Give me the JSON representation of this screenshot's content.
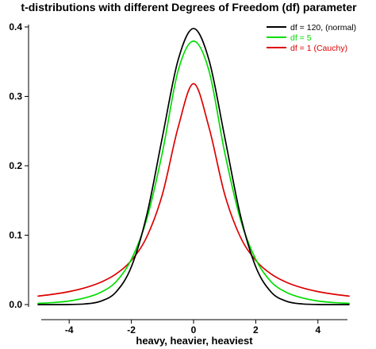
{
  "chart_data": {
    "type": "line",
    "title": "t-distributions with different Degrees of Freedom (df) parameter",
    "xlabel": "heavy, heavier, heaviest",
    "ylabel": "",
    "xlim": [
      -5,
      5
    ],
    "ylim": [
      0,
      0.4
    ],
    "x_ticks": [
      -4,
      -2,
      0,
      2,
      4
    ],
    "x_tick_labels": [
      "-4",
      "-2",
      "0",
      "2",
      "4"
    ],
    "y_ticks": [
      0.0,
      0.1,
      0.2,
      0.3,
      0.4
    ],
    "y_tick_labels": [
      "0.0",
      "0.1",
      "0.2",
      "0.3",
      "0.4"
    ],
    "grid": false,
    "legend_position": "top-right",
    "x": [
      -5,
      -4.5,
      -4,
      -3.5,
      -3,
      -2.5,
      -2,
      -1.5,
      -1,
      -0.5,
      0,
      0.5,
      1,
      1.5,
      2,
      2.5,
      3,
      3.5,
      4,
      4.5,
      5
    ],
    "series": [
      {
        "name": "df = 120, (normal)",
        "color": "#000000",
        "values": [
          2e-06,
          2.1e-05,
          0.000139,
          0.000908,
          0.004631,
          0.017833,
          0.054469,
          0.129857,
          0.241941,
          0.351819,
          0.397769,
          0.351819,
          0.241941,
          0.129857,
          0.054469,
          0.017833,
          0.004631,
          0.000908,
          0.000139,
          2.1e-05,
          2e-06
        ]
      },
      {
        "name": "df = 5",
        "color": "#00dd00",
        "values": [
          0.001757,
          0.002915,
          0.005123,
          0.009584,
          0.017292,
          0.032553,
          0.06509,
          0.123998,
          0.21968,
          0.33636,
          0.379607,
          0.33636,
          0.21968,
          0.123998,
          0.06509,
          0.032553,
          0.017292,
          0.009584,
          0.005123,
          0.002915,
          0.001757
        ]
      },
      {
        "name": "df = 1 (Cauchy)",
        "color": "#dd0000",
        "values": [
          0.012243,
          0.014979,
          0.018724,
          0.024051,
          0.031831,
          0.043905,
          0.063662,
          0.097942,
          0.159155,
          0.254648,
          0.31831,
          0.254648,
          0.159155,
          0.097942,
          0.063662,
          0.043905,
          0.031831,
          0.024051,
          0.018724,
          0.014979,
          0.012243
        ]
      }
    ]
  }
}
